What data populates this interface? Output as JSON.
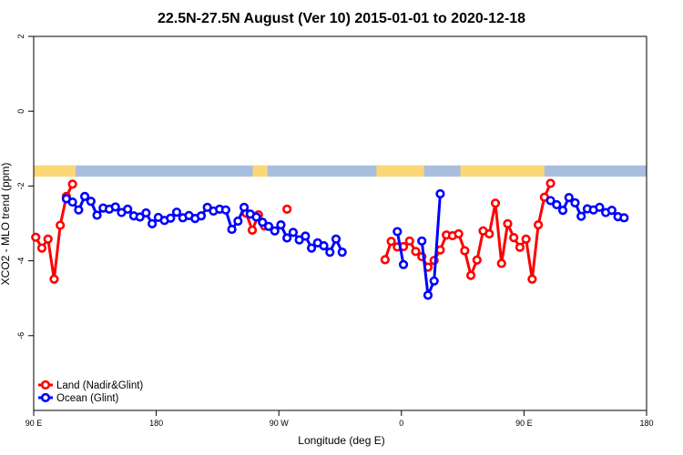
{
  "chart_data": {
    "type": "line",
    "title": "22.5N-27.5N August (Ver 10)   2015-01-01 to 2020-12-18",
    "xlabel": "Longitude (deg E)",
    "ylabel": "XCO2 - MLO trend (ppm)",
    "xlim": [
      -90,
      180
    ],
    "ylim": [
      -8,
      2
    ],
    "x_ticks": [
      {
        "value": -90,
        "label": "90 E"
      },
      {
        "value": -36,
        "label": "180"
      },
      {
        "value": 18,
        "label": "90 W"
      },
      {
        "value": 72,
        "label": "0"
      },
      {
        "value": 126,
        "label": "90 E"
      },
      {
        "value": 180,
        "label": "180"
      }
    ],
    "y_ticks": [
      {
        "value": 2,
        "label": "2"
      },
      {
        "value": 0,
        "label": "0"
      },
      {
        "value": -2,
        "label": "-2"
      },
      {
        "value": -4,
        "label": "-4"
      },
      {
        "value": -6,
        "label": "-6"
      }
    ],
    "grid": false,
    "legend_position": "bottom-left",
    "land_band": {
      "y_range": [
        -1.75,
        -1.45
      ],
      "ocean_color": "#a8bedf",
      "land_color": "#fbd776",
      "land_segments": [
        [
          -90,
          -71.5
        ],
        [
          6.5,
          13
        ],
        [
          61,
          82
        ],
        [
          98,
          135
        ]
      ]
    },
    "series": [
      {
        "name": "Land (Nadir&Glint)",
        "color": "#ff0000",
        "segments": [
          [
            [
              -89.1,
              -3.37
            ],
            [
              -86.4,
              -3.66
            ],
            [
              -83.7,
              -3.42
            ],
            [
              -81,
              -4.49
            ],
            [
              -78.3,
              -3.05
            ],
            [
              -75.6,
              -2.28
            ],
            [
              -72.9,
              -1.95
            ]
          ],
          [
            [
              3.6,
              -2.73
            ],
            [
              6.3,
              -3.18
            ],
            [
              9,
              -2.77
            ],
            [
              11.7,
              -3.07
            ]
          ],
          [
            [
              21.6,
              -2.62
            ]
          ],
          [
            [
              64.8,
              -3.97
            ],
            [
              67.5,
              -3.48
            ],
            [
              70.2,
              -3.63
            ],
            [
              72.9,
              -3.62
            ],
            [
              75.6,
              -3.47
            ],
            [
              78.3,
              -3.75
            ],
            [
              81,
              -3.89
            ],
            [
              83.7,
              -4.17
            ],
            [
              86.4,
              -3.99
            ],
            [
              89.1,
              -3.71
            ],
            [
              91.8,
              -3.31
            ],
            [
              94.5,
              -3.33
            ],
            [
              97.2,
              -3.28
            ],
            [
              99.9,
              -3.73
            ],
            [
              102.6,
              -4.39
            ],
            [
              105.3,
              -3.98
            ],
            [
              108,
              -3.2
            ],
            [
              110.7,
              -3.28
            ],
            [
              113.4,
              -2.46
            ],
            [
              116.1,
              -4.07
            ],
            [
              118.8,
              -3.01
            ],
            [
              121.5,
              -3.38
            ],
            [
              124.2,
              -3.64
            ],
            [
              126.9,
              -3.42
            ],
            [
              129.6,
              -4.49
            ],
            [
              132.3,
              -3.04
            ],
            [
              135,
              -2.3
            ],
            [
              137.7,
              -1.93
            ]
          ]
        ]
      },
      {
        "name": "Ocean (Glint)",
        "color": "#0000ff",
        "segments": [
          [
            [
              -75.6,
              -2.34
            ],
            [
              -72.9,
              -2.43
            ],
            [
              -70.2,
              -2.64
            ],
            [
              -67.5,
              -2.28
            ],
            [
              -64.8,
              -2.41
            ],
            [
              -62.1,
              -2.78
            ],
            [
              -59.4,
              -2.59
            ],
            [
              -56.7,
              -2.62
            ],
            [
              -54,
              -2.56
            ],
            [
              -51.3,
              -2.71
            ],
            [
              -48.6,
              -2.62
            ],
            [
              -45.9,
              -2.8
            ],
            [
              -43.2,
              -2.83
            ],
            [
              -40.5,
              -2.72
            ],
            [
              -37.8,
              -3.01
            ],
            [
              -35.1,
              -2.84
            ],
            [
              -32.4,
              -2.92
            ],
            [
              -29.7,
              -2.86
            ],
            [
              -27,
              -2.7
            ],
            [
              -24.3,
              -2.85
            ],
            [
              -21.6,
              -2.79
            ],
            [
              -18.9,
              -2.87
            ],
            [
              -16.2,
              -2.8
            ],
            [
              -13.5,
              -2.57
            ],
            [
              -10.8,
              -2.67
            ],
            [
              -8.1,
              -2.62
            ],
            [
              -5.4,
              -2.64
            ],
            [
              -2.7,
              -3.16
            ],
            [
              0,
              -2.94
            ],
            [
              2.7,
              -2.57
            ],
            [
              5.4,
              -2.75
            ],
            [
              8.1,
              -2.83
            ],
            [
              10.8,
              -2.97
            ],
            [
              13.5,
              -3.08
            ],
            [
              16.2,
              -3.2
            ],
            [
              18.9,
              -3.04
            ],
            [
              21.6,
              -3.39
            ],
            [
              24.3,
              -3.24
            ],
            [
              27,
              -3.44
            ],
            [
              29.7,
              -3.34
            ],
            [
              32.4,
              -3.66
            ],
            [
              35.1,
              -3.52
            ],
            [
              37.8,
              -3.6
            ],
            [
              40.5,
              -3.77
            ],
            [
              43.2,
              -3.42
            ],
            [
              45.9,
              -3.77
            ]
          ],
          [
            [
              70.2,
              -3.22
            ],
            [
              72.9,
              -4.1
            ]
          ],
          [
            [
              81,
              -3.47
            ],
            [
              83.7,
              -4.92
            ],
            [
              86.4,
              -4.54
            ],
            [
              89.1,
              -2.21
            ]
          ],
          [
            [
              137.7,
              -2.39
            ],
            [
              140.4,
              -2.5
            ],
            [
              143.1,
              -2.65
            ],
            [
              145.8,
              -2.31
            ],
            [
              148.5,
              -2.45
            ],
            [
              151.2,
              -2.81
            ],
            [
              153.9,
              -2.61
            ],
            [
              156.6,
              -2.64
            ],
            [
              159.3,
              -2.57
            ],
            [
              162,
              -2.71
            ],
            [
              164.7,
              -2.65
            ],
            [
              167.4,
              -2.82
            ],
            [
              170.1,
              -2.85
            ]
          ]
        ]
      }
    ]
  }
}
